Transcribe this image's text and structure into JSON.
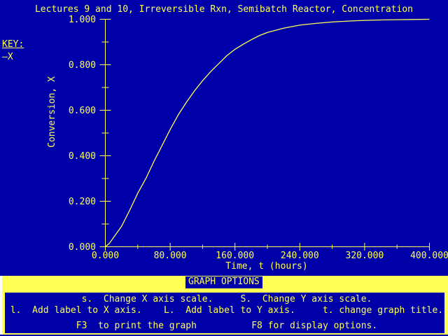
{
  "title": "Lectures 9 and 10, Irreversible Rxn, Semibatch Reactor, Concentration",
  "legend": {
    "title": "KEY:",
    "entries": [
      {
        "symbol": "—",
        "label": "X"
      }
    ]
  },
  "colors": {
    "background": "#0000A8",
    "foreground": "#FFFF54",
    "panel_background": "#FFFF54",
    "panel_left_border": "#FCFCFC",
    "series_line": "#FFFF54"
  },
  "chart_data": {
    "type": "line",
    "title": "Lectures 9 and 10, Irreversible Rxn, Semibatch Reactor, Concentration",
    "xlabel": "Time, t (hours)",
    "ylabel": "Conversion, X",
    "xlim": [
      0,
      400
    ],
    "ylim": [
      0,
      1
    ],
    "grid": false,
    "legend_position": "top-left",
    "x_ticks": {
      "values": [
        0,
        80,
        160,
        240,
        320,
        400
      ],
      "labels": [
        "0.000",
        "80.000",
        "160.000",
        "240.000",
        "320.000",
        "400.000"
      ]
    },
    "y_ticks": {
      "values": [
        0,
        0.2,
        0.4,
        0.6,
        0.8,
        1.0
      ],
      "labels": [
        "0.000",
        "0.200",
        "0.400",
        "0.600",
        "0.800",
        "1.000"
      ]
    },
    "minor_tick_interval": {
      "x": 40,
      "y": 0.1
    },
    "series": [
      {
        "name": "X",
        "color": "#FFFF54",
        "points": [
          [
            0,
            0.0
          ],
          [
            5,
            0.015
          ],
          [
            10,
            0.04
          ],
          [
            20,
            0.09
          ],
          [
            30,
            0.16
          ],
          [
            40,
            0.235
          ],
          [
            50,
            0.3
          ],
          [
            60,
            0.375
          ],
          [
            70,
            0.445
          ],
          [
            80,
            0.515
          ],
          [
            90,
            0.58
          ],
          [
            100,
            0.635
          ],
          [
            110,
            0.685
          ],
          [
            120,
            0.73
          ],
          [
            130,
            0.77
          ],
          [
            140,
            0.805
          ],
          [
            150,
            0.84
          ],
          [
            160,
            0.868
          ],
          [
            170,
            0.89
          ],
          [
            180,
            0.91
          ],
          [
            190,
            0.928
          ],
          [
            200,
            0.942
          ],
          [
            220,
            0.961
          ],
          [
            240,
            0.974
          ],
          [
            260,
            0.982
          ],
          [
            280,
            0.988
          ],
          [
            300,
            0.992
          ],
          [
            320,
            0.995
          ],
          [
            340,
            0.997
          ],
          [
            360,
            0.998
          ],
          [
            380,
            0.999
          ],
          [
            400,
            1.0
          ]
        ]
      }
    ]
  },
  "options_panel": {
    "title": "GRAPH OPTIONS",
    "rows": [
      "              s.  Change X axis scale.     S.  Change Y axis scale.",
      " l.  Add label to X axis.    L.  Add label to Y axis.     t. change graph title.",
      "             F3  to print the graph          F8 for display options."
    ]
  }
}
